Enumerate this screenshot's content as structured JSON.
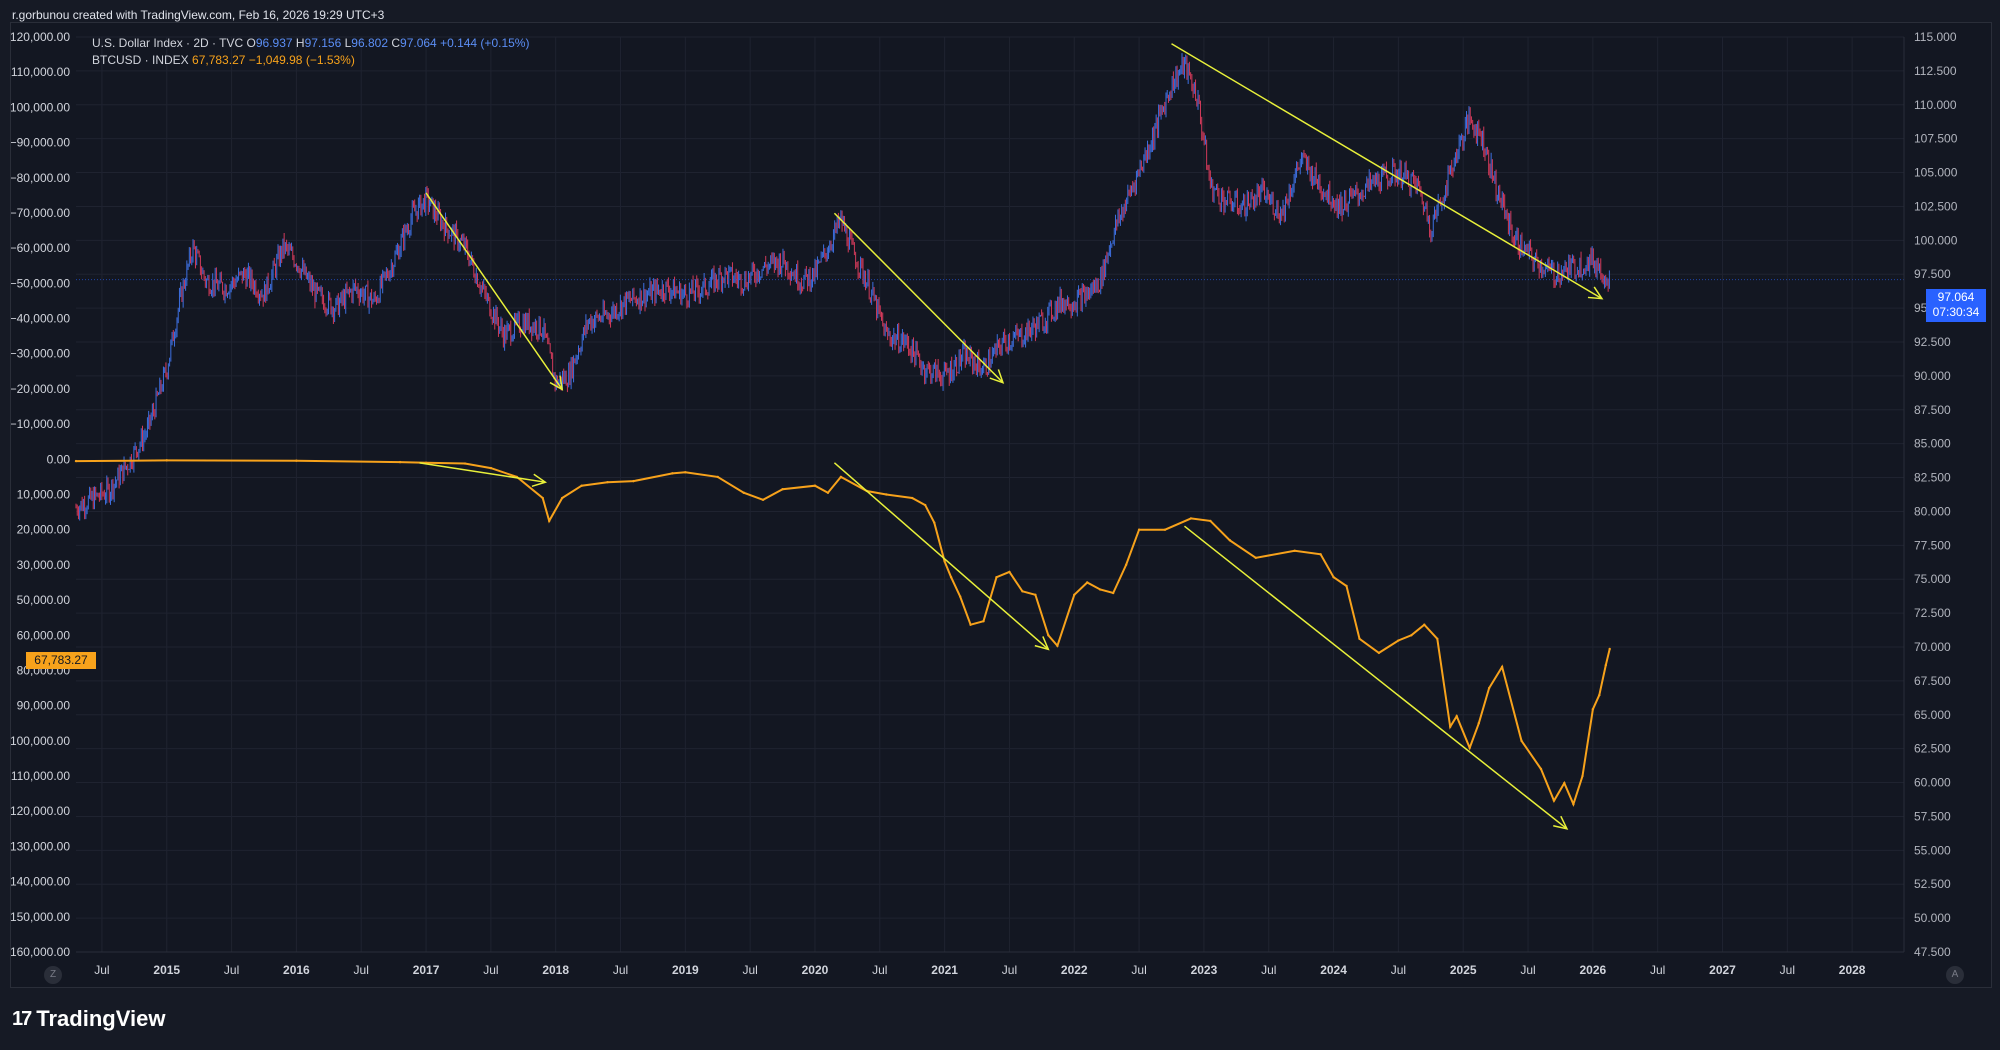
{
  "header": {
    "credit": "r.gorbunou created with TradingView.com, Feb 16, 2026 19:29 UTC+3"
  },
  "legend": {
    "dxy_name": "U.S. Dollar Index · 2D · TVC",
    "dxy_o_label": "O",
    "dxy_o": "96.937",
    "dxy_h_label": "H",
    "dxy_h": "97.156",
    "dxy_l_label": "L",
    "dxy_l": "96.802",
    "dxy_c_label": "C",
    "dxy_c": "97.064",
    "dxy_change": "+0.144 (+0.15%)",
    "btc_name": "BTCUSD · INDEX",
    "btc_last": "67,783.27",
    "btc_change": "−1,049.98 (−1.53%)"
  },
  "badges": {
    "dxy_price": "97.064",
    "dxy_countdown": "07:30:34",
    "btc_price": "67,783.27"
  },
  "brand": {
    "name": "TradingView",
    "logo": "17"
  },
  "controls": {
    "left": "Z",
    "right": "A"
  },
  "colors": {
    "background": "#131722",
    "dxy_up": "#3d6fe0",
    "dxy_down": "#d23a5a",
    "btc": "#f7a21b",
    "trend_arrows": "#e8f03a",
    "price_badge": "#2962ff"
  },
  "chart_data": {
    "type": "line",
    "title": "",
    "x_tick_labels": [
      "Jul",
      "2015",
      "Jul",
      "2016",
      "Jul",
      "2017",
      "Jul",
      "2018",
      "Jul",
      "2019",
      "Jul",
      "2020",
      "Jul",
      "2021",
      "Jul",
      "2022",
      "Jul",
      "2023",
      "Jul",
      "2024",
      "Jul",
      "2025",
      "Jul",
      "2026",
      "Jul",
      "2027",
      "Jul",
      "2028"
    ],
    "x_tick_years": [
      2014.5,
      2015,
      2015.5,
      2016,
      2016.5,
      2017,
      2017.5,
      2018,
      2018.5,
      2019,
      2019.5,
      2020,
      2020.5,
      2021,
      2021.5,
      2022,
      2022.5,
      2023,
      2023.5,
      2024,
      2024.5,
      2025,
      2025.5,
      2026,
      2026.5,
      2027,
      2027.5,
      2028
    ],
    "xlim": [
      2014.3,
      2028.4
    ],
    "right_axis": {
      "series": "U.S. Dollar Index",
      "ylim": [
        47.5,
        115.0
      ],
      "tick_values": [
        47.5,
        50,
        52.5,
        55,
        57.5,
        60,
        62.5,
        65,
        67.5,
        70,
        72.5,
        75,
        77.5,
        80,
        82.5,
        85,
        87.5,
        90,
        92.5,
        95,
        97.5,
        100,
        102.5,
        105,
        107.5,
        110,
        112.5,
        115
      ],
      "tick_labels": [
        "47.500",
        "50.000",
        "52.500",
        "55.000",
        "57.500",
        "60.000",
        "62.500",
        "65.000",
        "67.500",
        "70.000",
        "72.500",
        "75.000",
        "77.500",
        "80.000",
        "82.500",
        "85.000",
        "87.500",
        "90.000",
        "92.500",
        "95.000",
        "97.500",
        "100.000",
        "102.500",
        "105.000",
        "107.500",
        "110.000",
        "112.500",
        "115.000"
      ]
    },
    "left_axis": {
      "series": "BTCUSD",
      "inverted": true,
      "ylim": [
        -120000,
        160000
      ],
      "tick_values": [
        -120000,
        -110000,
        -100000,
        -90000,
        -80000,
        -70000,
        -60000,
        -50000,
        -40000,
        -30000,
        -20000,
        -10000,
        0,
        10000,
        20000,
        30000,
        50000,
        60000,
        80000,
        90000,
        100000,
        110000,
        120000,
        130000,
        140000,
        150000,
        160000
      ],
      "tick_labels": [
        "−120,000.00",
        "−110,000.00",
        "−100,000.00",
        "−90,000.00",
        "−80,000.00",
        "−70,000.00",
        "−60,000.00",
        "−50,000.00",
        "−40,000.00",
        "−30,000.00",
        "−20,000.00",
        "−10,000.00",
        "0.00",
        "10,000.00",
        "20,000.00",
        "30,000.00",
        "50,000.00",
        "60,000.00",
        "80,000.00",
        "90,000.00",
        "100,000.00",
        "110,000.00",
        "120,000.00",
        "130,000.00",
        "140,000.00",
        "150,000.00",
        "160,000.00"
      ]
    },
    "series": [
      {
        "name": "U.S. Dollar Index",
        "axis": "right",
        "x": [
          2014.3,
          2014.4,
          2014.55,
          2014.7,
          2014.85,
          2015.0,
          2015.1,
          2015.2,
          2015.3,
          2015.45,
          2015.6,
          2015.75,
          2015.9,
          2016.0,
          2016.15,
          2016.3,
          2016.45,
          2016.6,
          2016.75,
          2016.9,
          2017.0,
          2017.15,
          2017.3,
          2017.45,
          2017.6,
          2017.75,
          2017.9,
          2018.0,
          2018.1,
          2018.25,
          2018.4,
          2018.55,
          2018.7,
          2018.85,
          2019.0,
          2019.15,
          2019.3,
          2019.45,
          2019.6,
          2019.75,
          2019.9,
          2020.0,
          2020.1,
          2020.2,
          2020.3,
          2020.4,
          2020.55,
          2020.7,
          2020.85,
          2021.0,
          2021.15,
          2021.3,
          2021.45,
          2021.6,
          2021.75,
          2021.9,
          2022.0,
          2022.1,
          2022.2,
          2022.3,
          2022.45,
          2022.6,
          2022.75,
          2022.85,
          2022.95,
          2023.05,
          2023.15,
          2023.3,
          2023.45,
          2023.6,
          2023.75,
          2023.9,
          2024.05,
          2024.2,
          2024.35,
          2024.5,
          2024.65,
          2024.75,
          2024.85,
          2024.95,
          2025.05,
          2025.15,
          2025.25,
          2025.4,
          2025.55,
          2025.7,
          2025.85,
          2026.0,
          2026.13
        ],
        "y": [
          80.3,
          80.8,
          81.5,
          83.5,
          86.0,
          90.5,
          95.5,
          99.5,
          97.0,
          96.5,
          97.5,
          96.0,
          99.5,
          98.5,
          96.0,
          95.0,
          96.5,
          95.5,
          98.5,
          102.0,
          103.0,
          101.0,
          99.5,
          96.0,
          93.0,
          94.0,
          93.5,
          89.5,
          90.0,
          94.0,
          94.5,
          95.5,
          96.0,
          96.5,
          96.0,
          96.5,
          97.5,
          97.0,
          98.0,
          98.5,
          97.0,
          97.5,
          99.5,
          101.5,
          99.0,
          97.0,
          93.0,
          92.5,
          90.5,
          90.0,
          91.5,
          90.5,
          92.5,
          93.0,
          94.0,
          95.5,
          95.5,
          96.0,
          97.0,
          100.5,
          104.0,
          107.5,
          111.5,
          113.0,
          110.5,
          104.0,
          103.0,
          102.5,
          103.5,
          102.0,
          106.0,
          104.0,
          102.5,
          103.5,
          104.5,
          105.0,
          104.0,
          101.0,
          103.5,
          106.5,
          109.0,
          107.5,
          104.0,
          100.0,
          98.5,
          97.5,
          98.0,
          98.5,
          97.1
        ]
      },
      {
        "name": "BTCUSD",
        "axis": "left",
        "x": [
          2014.3,
          2015.0,
          2016.0,
          2016.8,
          2017.0,
          2017.3,
          2017.5,
          2017.7,
          2017.9,
          2017.95,
          2018.05,
          2018.2,
          2018.4,
          2018.6,
          2018.9,
          2019.0,
          2019.25,
          2019.45,
          2019.6,
          2019.75,
          2020.0,
          2020.1,
          2020.2,
          2020.4,
          2020.55,
          2020.75,
          2020.85,
          2020.92,
          2021.0,
          2021.05,
          2021.12,
          2021.2,
          2021.3,
          2021.4,
          2021.5,
          2021.6,
          2021.7,
          2021.8,
          2021.87,
          2022.0,
          2022.1,
          2022.2,
          2022.3,
          2022.4,
          2022.5,
          2022.7,
          2022.9,
          2023.05,
          2023.2,
          2023.4,
          2023.7,
          2023.9,
          2024.0,
          2024.1,
          2024.2,
          2024.35,
          2024.5,
          2024.6,
          2024.7,
          2024.8,
          2024.9,
          2024.95,
          2025.05,
          2025.12,
          2025.2,
          2025.3,
          2025.45,
          2025.6,
          2025.7,
          2025.78,
          2025.85,
          2025.92,
          2026.0,
          2026.05,
          2026.1,
          2026.13
        ],
        "y": [
          500,
          300,
          400,
          800,
          1000,
          1200,
          2500,
          5000,
          11000,
          17500,
          11000,
          7500,
          6500,
          6200,
          4000,
          3700,
          5000,
          9500,
          11500,
          8500,
          7500,
          9500,
          5000,
          9000,
          10000,
          11000,
          13000,
          18000,
          29000,
          37000,
          48000,
          57000,
          56000,
          37000,
          34000,
          45000,
          47000,
          60000,
          66000,
          47000,
          40000,
          44000,
          46000,
          30000,
          20000,
          20000,
          16800,
          17500,
          23000,
          28000,
          26000,
          27000,
          37000,
          42000,
          62000,
          70000,
          63000,
          60000,
          57000,
          62000,
          96000,
          93000,
          102000,
          95000,
          85000,
          78000,
          100000,
          108000,
          117000,
          112000,
          118000,
          110000,
          91000,
          87000,
          77000,
          67783
        ]
      }
    ],
    "annotations": [
      {
        "type": "arrow",
        "axis": "right",
        "from": [
          2017.0,
          103.5
        ],
        "to": [
          2018.05,
          89.0
        ]
      },
      {
        "type": "arrow",
        "axis": "right",
        "from": [
          2020.15,
          102.0
        ],
        "to": [
          2021.45,
          89.5
        ]
      },
      {
        "type": "arrow",
        "axis": "right",
        "from": [
          2022.75,
          114.5
        ],
        "to": [
          2026.07,
          95.7
        ]
      },
      {
        "type": "arrow",
        "axis": "left",
        "from": [
          2016.95,
          1000
        ],
        "to": [
          2017.92,
          6500
        ]
      },
      {
        "type": "arrow",
        "axis": "left",
        "from": [
          2020.15,
          1000
        ],
        "to": [
          2021.8,
          68000
        ]
      },
      {
        "type": "arrow",
        "axis": "left",
        "from": [
          2022.85,
          19000
        ],
        "to": [
          2025.8,
          125000
        ]
      }
    ]
  }
}
